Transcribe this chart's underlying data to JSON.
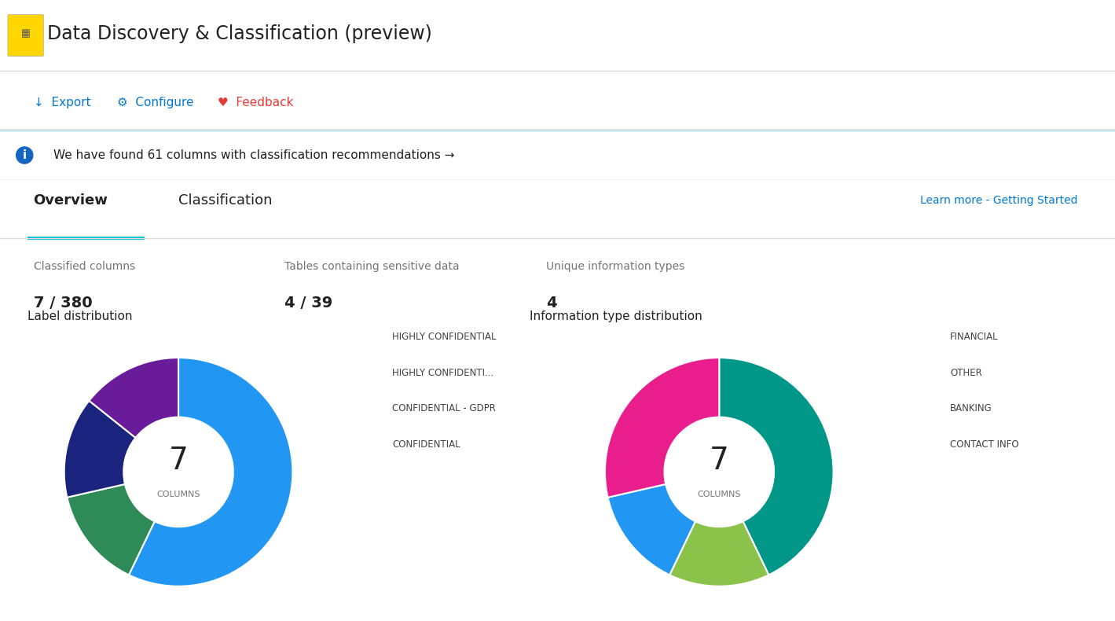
{
  "title": "Data Discovery & Classification (preview)",
  "info_banner": "We have found 61 columns with classification recommendations →",
  "tab_overview": "Overview",
  "tab_classification": "Classification",
  "learn_more": "Learn more - Getting Started",
  "stats": [
    {
      "label": "Classified columns",
      "value": "7 / 380"
    },
    {
      "label": "Tables containing sensitive data",
      "value": "4 / 39"
    },
    {
      "label": "Unique information types",
      "value": "4"
    }
  ],
  "label_dist_title": "Label distribution",
  "label_slices": [
    4,
    1,
    1,
    1
  ],
  "label_colors": [
    "#2196F3",
    "#2E8B57",
    "#1A237E",
    "#6A1B9A"
  ],
  "label_legends": [
    "HIGHLY CONFIDENTIAL",
    "HIGHLY CONFIDENTI...",
    "CONFIDENTIAL - GDPR",
    "CONFIDENTIAL"
  ],
  "label_center": "7",
  "label_sub": "COLUMNS",
  "info_dist_title": "Information type distribution",
  "info_slices": [
    3,
    1,
    1,
    2
  ],
  "info_colors": [
    "#009688",
    "#8BC34A",
    "#2196F3",
    "#E91E8C"
  ],
  "info_legends": [
    "FINANCIAL",
    "OTHER",
    "BANKING",
    "CONTACT INFO"
  ],
  "info_center": "7",
  "info_sub": "COLUMNS",
  "bg_color": "#FFFFFF",
  "banner_color": "#E3F2FD",
  "banner_border": "#90CAF9",
  "tab_line_color": "#00BCD4",
  "text_color_dark": "#212121",
  "text_color_gray": "#9E9E9E",
  "export_text": "↓  Export",
  "configure_text": "⚙  Configure",
  "feedback_text": "♥  Feedback"
}
